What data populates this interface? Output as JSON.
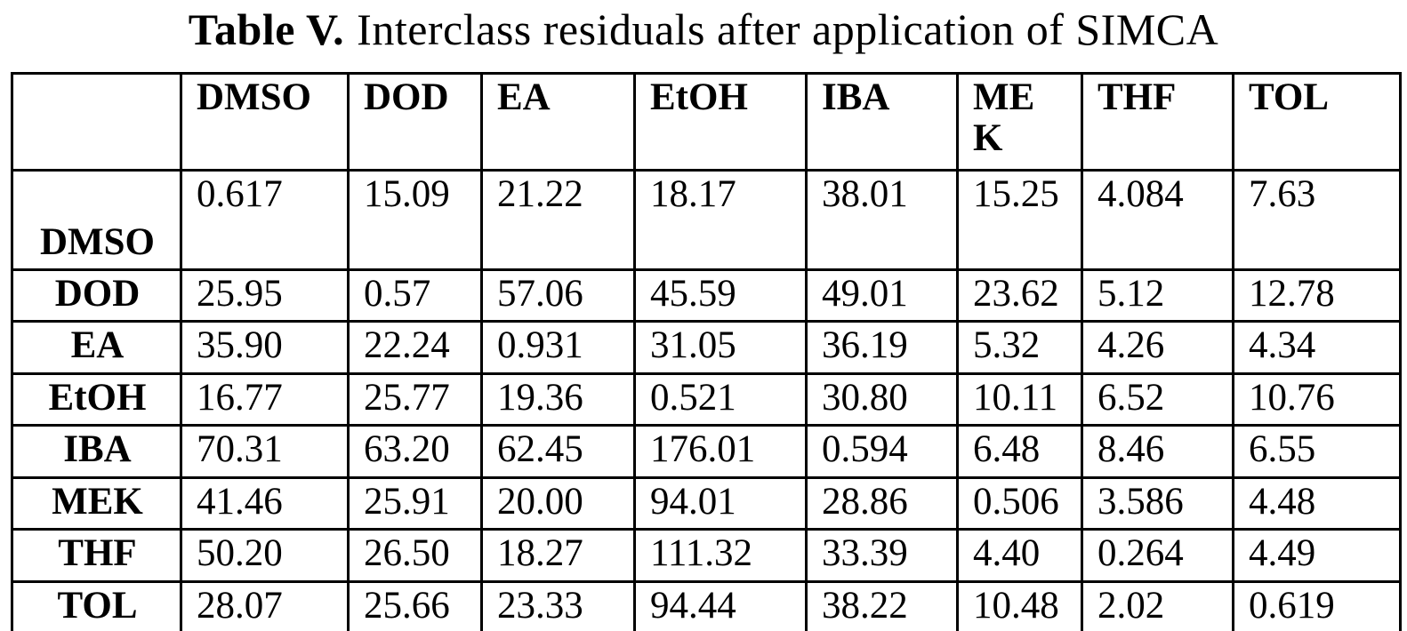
{
  "document": {
    "title_bold": "Table V.",
    "title_rest": "Interclass residuals after application of SIMCA"
  },
  "table": {
    "columns": [
      "",
      "DMSO",
      "DOD",
      "EA",
      "EtOH",
      "IBA",
      "ME\nK",
      "THF",
      "TOL"
    ],
    "rows": [
      {
        "label": "DMSO",
        "values": [
          "0.617",
          "15.09",
          "21.22",
          "18.17",
          "38.01",
          "15.25",
          "4.084",
          "7.63"
        ]
      },
      {
        "label": "DOD",
        "values": [
          "25.95",
          "0.57",
          "57.06",
          "45.59",
          "49.01",
          "23.62",
          "5.12",
          "12.78"
        ]
      },
      {
        "label": "EA",
        "values": [
          "35.90",
          "22.24",
          "0.931",
          "31.05",
          "36.19",
          "5.32",
          "4.26",
          "4.34"
        ]
      },
      {
        "label": "EtOH",
        "values": [
          "16.77",
          "25.77",
          "19.36",
          "0.521",
          "30.80",
          "10.11",
          "6.52",
          "10.76"
        ]
      },
      {
        "label": "IBA",
        "values": [
          "70.31",
          "63.20",
          "62.45",
          "176.01",
          "0.594",
          "6.48",
          "8.46",
          "6.55"
        ]
      },
      {
        "label": "MEK",
        "values": [
          "41.46",
          "25.91",
          "20.00",
          "94.01",
          "28.86",
          "0.506",
          "3.586",
          "4.48"
        ]
      },
      {
        "label": "THF",
        "values": [
          "50.20",
          "26.50",
          "18.27",
          "111.32",
          "33.39",
          "4.40",
          "0.264",
          "4.49"
        ]
      },
      {
        "label": "TOL",
        "values": [
          "28.07",
          "25.66",
          "23.33",
          "94.44",
          "38.22",
          "10.48",
          "2.02",
          "0.619"
        ]
      }
    ]
  },
  "chart_data": {
    "type": "table",
    "title": "Table V. Interclass residuals after application of SIMCA",
    "columns": [
      "",
      "DMSO",
      "DOD",
      "EA",
      "EtOH",
      "IBA",
      "MEK",
      "THF",
      "TOL"
    ],
    "rows": [
      [
        "DMSO",
        0.617,
        15.09,
        21.22,
        18.17,
        38.01,
        15.25,
        4.084,
        7.63
      ],
      [
        "DOD",
        25.95,
        0.57,
        57.06,
        45.59,
        49.01,
        23.62,
        5.12,
        12.78
      ],
      [
        "EA",
        35.9,
        22.24,
        0.931,
        31.05,
        36.19,
        5.32,
        4.26,
        4.34
      ],
      [
        "EtOH",
        16.77,
        25.77,
        19.36,
        0.521,
        30.8,
        10.11,
        6.52,
        10.76
      ],
      [
        "IBA",
        70.31,
        63.2,
        62.45,
        176.01,
        0.594,
        6.48,
        8.46,
        6.55
      ],
      [
        "MEK",
        41.46,
        25.91,
        20.0,
        94.01,
        28.86,
        0.506,
        3.586,
        4.48
      ],
      [
        "THF",
        50.2,
        26.5,
        18.27,
        111.32,
        33.39,
        4.4,
        0.264,
        4.49
      ],
      [
        "TOL",
        28.07,
        25.66,
        23.33,
        94.44,
        38.22,
        10.48,
        2.02,
        0.619
      ]
    ]
  }
}
